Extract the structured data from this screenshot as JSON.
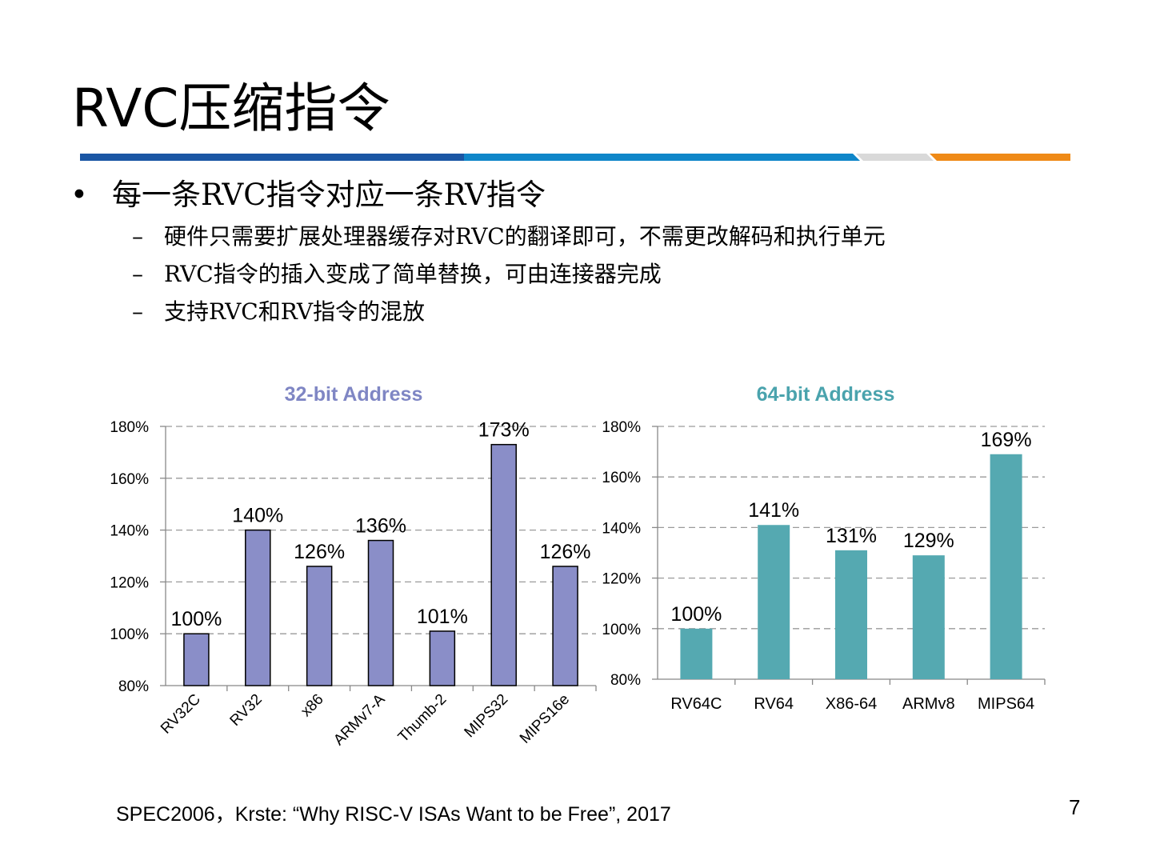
{
  "slide": {
    "title": "RVC压缩指令",
    "bullet": "每一条RVC指令对应一条RV指令",
    "bullet_marker": "•",
    "sub_marker": "–",
    "sub_bullets": [
      "硬件只需要扩展处理器缓存对RVC的翻译即可，不需更改解码和执行单元",
      "RVC指令的插入变成了简单替换，可由连接器完成",
      "支持RVC和RV指令的混放"
    ],
    "footnote": "SPEC2006，Krste: “Why RISC-V ISAs Want to be Free”, 2017",
    "page_number": "7",
    "bar_colors": [
      "#1a56a4",
      "#0f86c9",
      "#d9d9d9",
      "#ef8a17"
    ]
  },
  "chart_data": [
    {
      "type": "bar",
      "title": "32-bit Address",
      "title_color": "#7f86c4",
      "bar_color": "#8a8ec8",
      "bar_edge": "#000000",
      "categories": [
        "RV32C",
        "RV32",
        "x86",
        "ARMv7-A",
        "Thumb-2",
        "MIPS32",
        "MIPS16e"
      ],
      "values": [
        100,
        140,
        126,
        136,
        101,
        173,
        126
      ],
      "data_labels": [
        "100%",
        "140%",
        "126%",
        "136%",
        "101%",
        "173%",
        "126%"
      ],
      "ylim": [
        80,
        180
      ],
      "yticks": [
        80,
        100,
        120,
        140,
        160,
        180
      ],
      "ytick_labels": [
        "80%",
        "100%",
        "120%",
        "140%",
        "160%",
        "180%"
      ],
      "grid": true,
      "xlabel_rotation": -45
    },
    {
      "type": "bar",
      "title": "64-bit Address",
      "title_color": "#4aa3ad",
      "bar_color": "#55a9b1",
      "bar_edge": "none",
      "categories": [
        "RV64C",
        "RV64",
        "X86-64",
        "ARMv8",
        "MIPS64"
      ],
      "values": [
        100,
        141,
        131,
        129,
        169
      ],
      "data_labels": [
        "100%",
        "141%",
        "131%",
        "129%",
        "169%"
      ],
      "ylim": [
        80,
        180
      ],
      "yticks": [
        80,
        100,
        120,
        140,
        160,
        180
      ],
      "ytick_labels": [
        "80%",
        "100%",
        "120%",
        "140%",
        "160%",
        "180%"
      ],
      "grid": true,
      "xlabel_rotation": 0
    }
  ]
}
